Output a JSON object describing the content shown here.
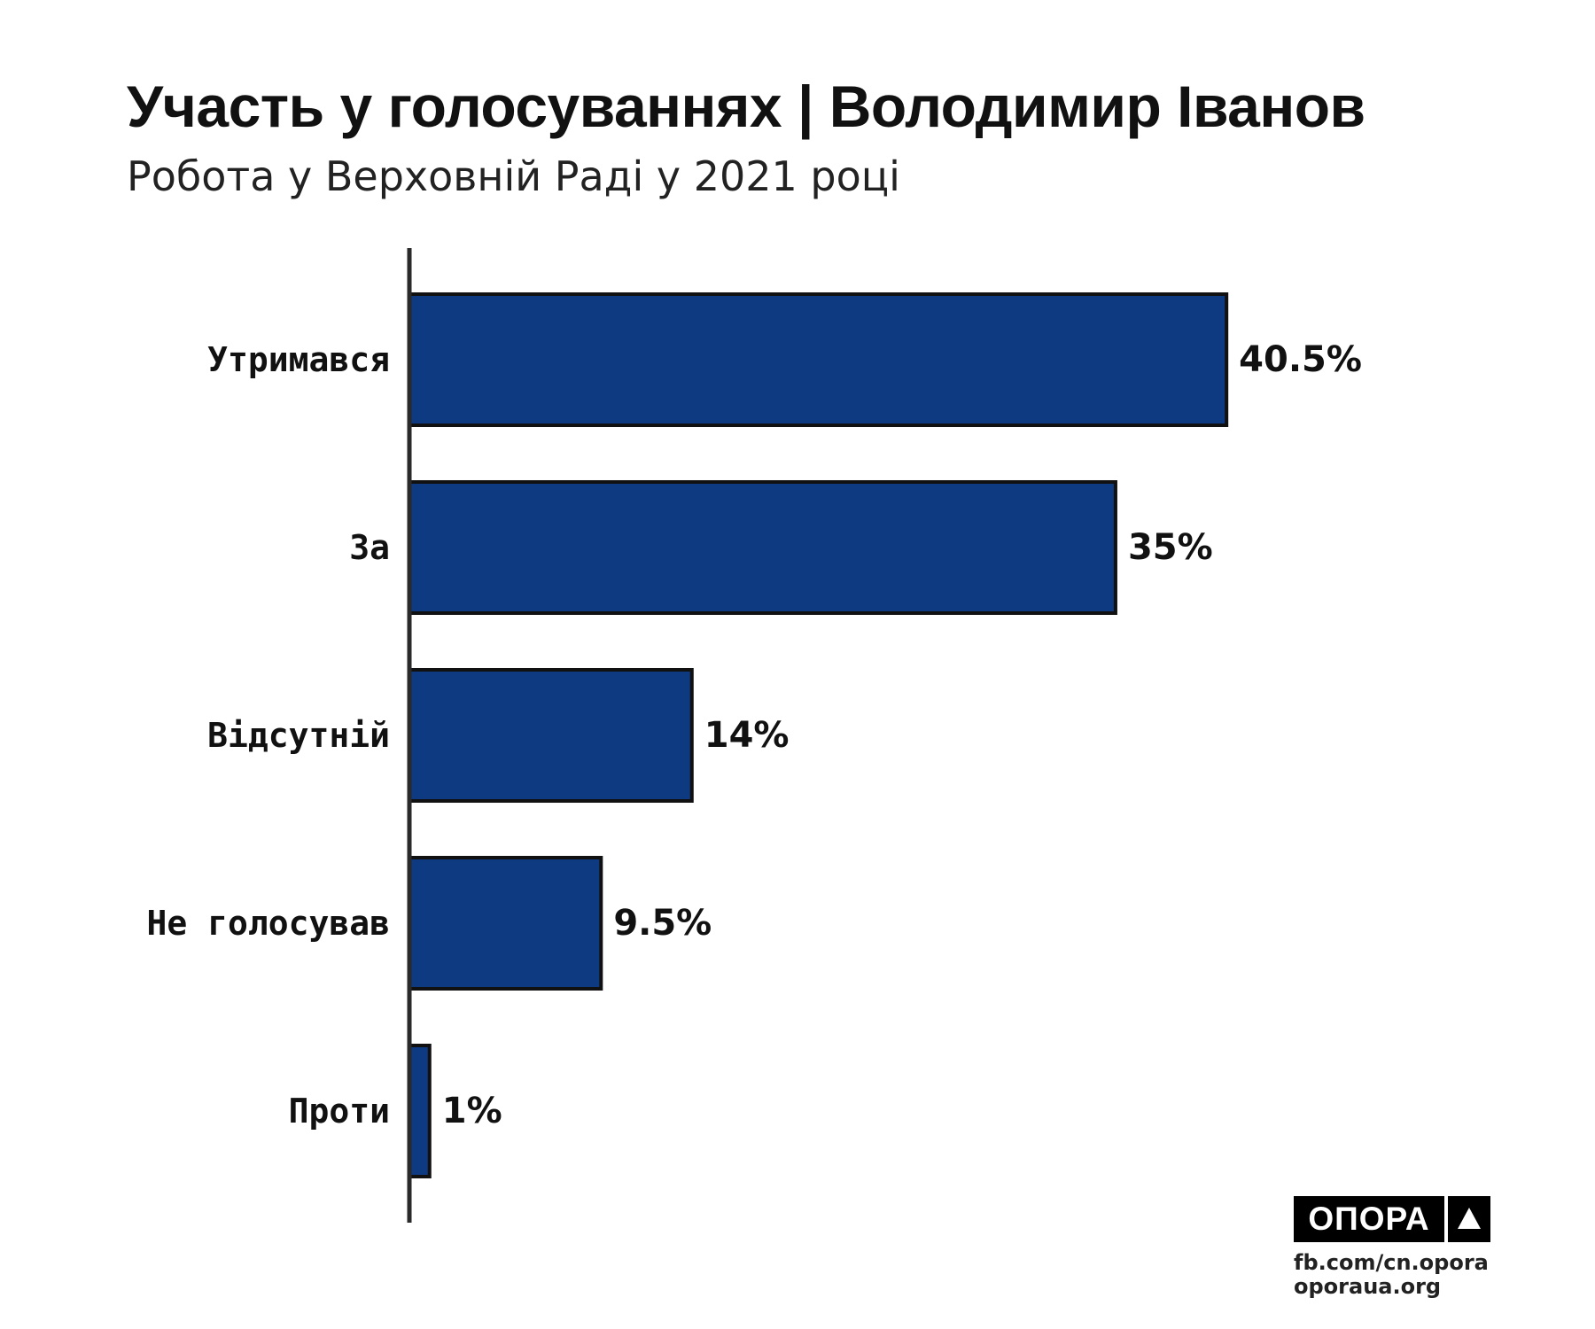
{
  "header": {
    "title": "Участь у голосуваннях | Володимир Іванов",
    "subtitle": "Робота у Верховній Раді у 2021 році"
  },
  "colors": {
    "bar_fill": "#0d3a80",
    "bar_stroke": "#111111",
    "axis": "#2a2a2a"
  },
  "chart_data": {
    "type": "bar",
    "orientation": "horizontal",
    "title": "Участь у голосуваннях | Володимир Іванов",
    "subtitle": "Робота у Верховній Раді у 2021 році",
    "categories": [
      "Утримався",
      "За",
      "Відсутній",
      "Не голосував",
      "Проти"
    ],
    "values": [
      40.5,
      35,
      14,
      9.5,
      1
    ],
    "value_labels": [
      "40.5%",
      "35%",
      "14%",
      "9.5%",
      "1%"
    ],
    "unit": "%",
    "xlabel": "",
    "ylabel": "",
    "grid": false,
    "legend": "none"
  },
  "branding": {
    "logo_text": "ОПОРА",
    "logo_icon": "triangle-up-icon",
    "link_fb": "fb.com/cn.opora",
    "link_site": "oporaua.org"
  }
}
